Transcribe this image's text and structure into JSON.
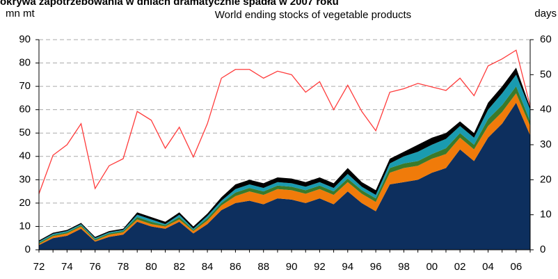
{
  "chart_data": {
    "type": "stacked_area_line",
    "header": "okrywa zapotrzebowania w dniach dramatycznie spadła w 2007 roku",
    "title": "World ending stocks of vegetable products",
    "ylabel": "mn mt",
    "y2label": "days",
    "categories": [
      "72",
      null,
      "74",
      null,
      "76",
      null,
      "78",
      null,
      "80",
      null,
      "82",
      null,
      "84",
      null,
      "86",
      null,
      "88",
      null,
      "90",
      null,
      "92",
      null,
      "94",
      null,
      "96",
      null,
      "98",
      null,
      "00",
      null,
      "02",
      null,
      "04",
      null,
      "06",
      null
    ],
    "series": [
      {
        "color": "#0d2f5e",
        "values": [
          2,
          5,
          6,
          9,
          3.5,
          5.5,
          6.5,
          12,
          10,
          9,
          12,
          7,
          11,
          17,
          20,
          21,
          19.5,
          22,
          21.5,
          20,
          22,
          19.5,
          25,
          20,
          16.5,
          28,
          29,
          30,
          33,
          35,
          43,
          38,
          48,
          54,
          63,
          49
        ]
      },
      {
        "color": "#f07b0a",
        "values": [
          0.5,
          0.8,
          1,
          1,
          0.5,
          1,
          1,
          1,
          1,
          1,
          1,
          1,
          1.5,
          2,
          3,
          4,
          4,
          4,
          4,
          4,
          4,
          4,
          4,
          4,
          4,
          5,
          6,
          6,
          6,
          6,
          5,
          5,
          5,
          5,
          4,
          4
        ]
      },
      {
        "color": "#3a7a2a",
        "values": [
          0.5,
          0.5,
          0.5,
          0.5,
          0.5,
          0.5,
          0.5,
          1,
          1,
          0.5,
          1,
          0.5,
          1,
          1,
          1.5,
          1.5,
          1.5,
          1.5,
          1.5,
          1.5,
          1.5,
          1.5,
          1.5,
          1.5,
          1.5,
          2,
          2,
          2,
          2,
          2.5,
          2,
          2,
          3,
          3,
          3,
          2
        ]
      },
      {
        "color": "#1a9bb0",
        "values": [
          0.5,
          0.5,
          0.5,
          0.5,
          0.5,
          0.5,
          0.5,
          1,
          1,
          0.5,
          1,
          0.5,
          1,
          1,
          1.5,
          1.5,
          1.5,
          1.5,
          1.5,
          1.5,
          1.5,
          1.5,
          2,
          1.5,
          1.5,
          2,
          3,
          4,
          4,
          4,
          3,
          3,
          4,
          5,
          5,
          5
        ]
      },
      {
        "color": "#000000",
        "values": [
          0.5,
          0.5,
          0.5,
          0.5,
          0.5,
          0.5,
          0.5,
          1,
          1,
          1,
          1,
          1,
          1,
          1.5,
          2,
          2,
          2,
          2,
          2,
          2,
          2,
          2,
          2.5,
          2,
          2,
          2,
          2,
          3,
          3,
          2.5,
          2,
          2,
          3,
          3,
          3,
          1
        ]
      },
      {
        "color": "#ff3b3b",
        "axis": "y2",
        "line": true,
        "values": [
          16,
          27,
          30,
          36,
          17.5,
          24,
          26,
          39.5,
          37,
          29,
          35,
          26.5,
          36,
          49,
          51.5,
          51.5,
          49,
          51,
          50,
          45,
          48,
          40,
          47,
          39.5,
          34,
          45,
          46,
          47.5,
          46.5,
          45.5,
          49,
          44,
          52.5,
          54.5,
          57,
          41
        ]
      }
    ],
    "ylim": [
      0,
      90
    ],
    "yticks": [
      0,
      10,
      20,
      30,
      40,
      50,
      60,
      70,
      80,
      90
    ],
    "y2lim": [
      0,
      60
    ],
    "y2ticks": [
      0,
      10,
      20,
      30,
      40,
      50,
      60
    ],
    "grid": true
  }
}
